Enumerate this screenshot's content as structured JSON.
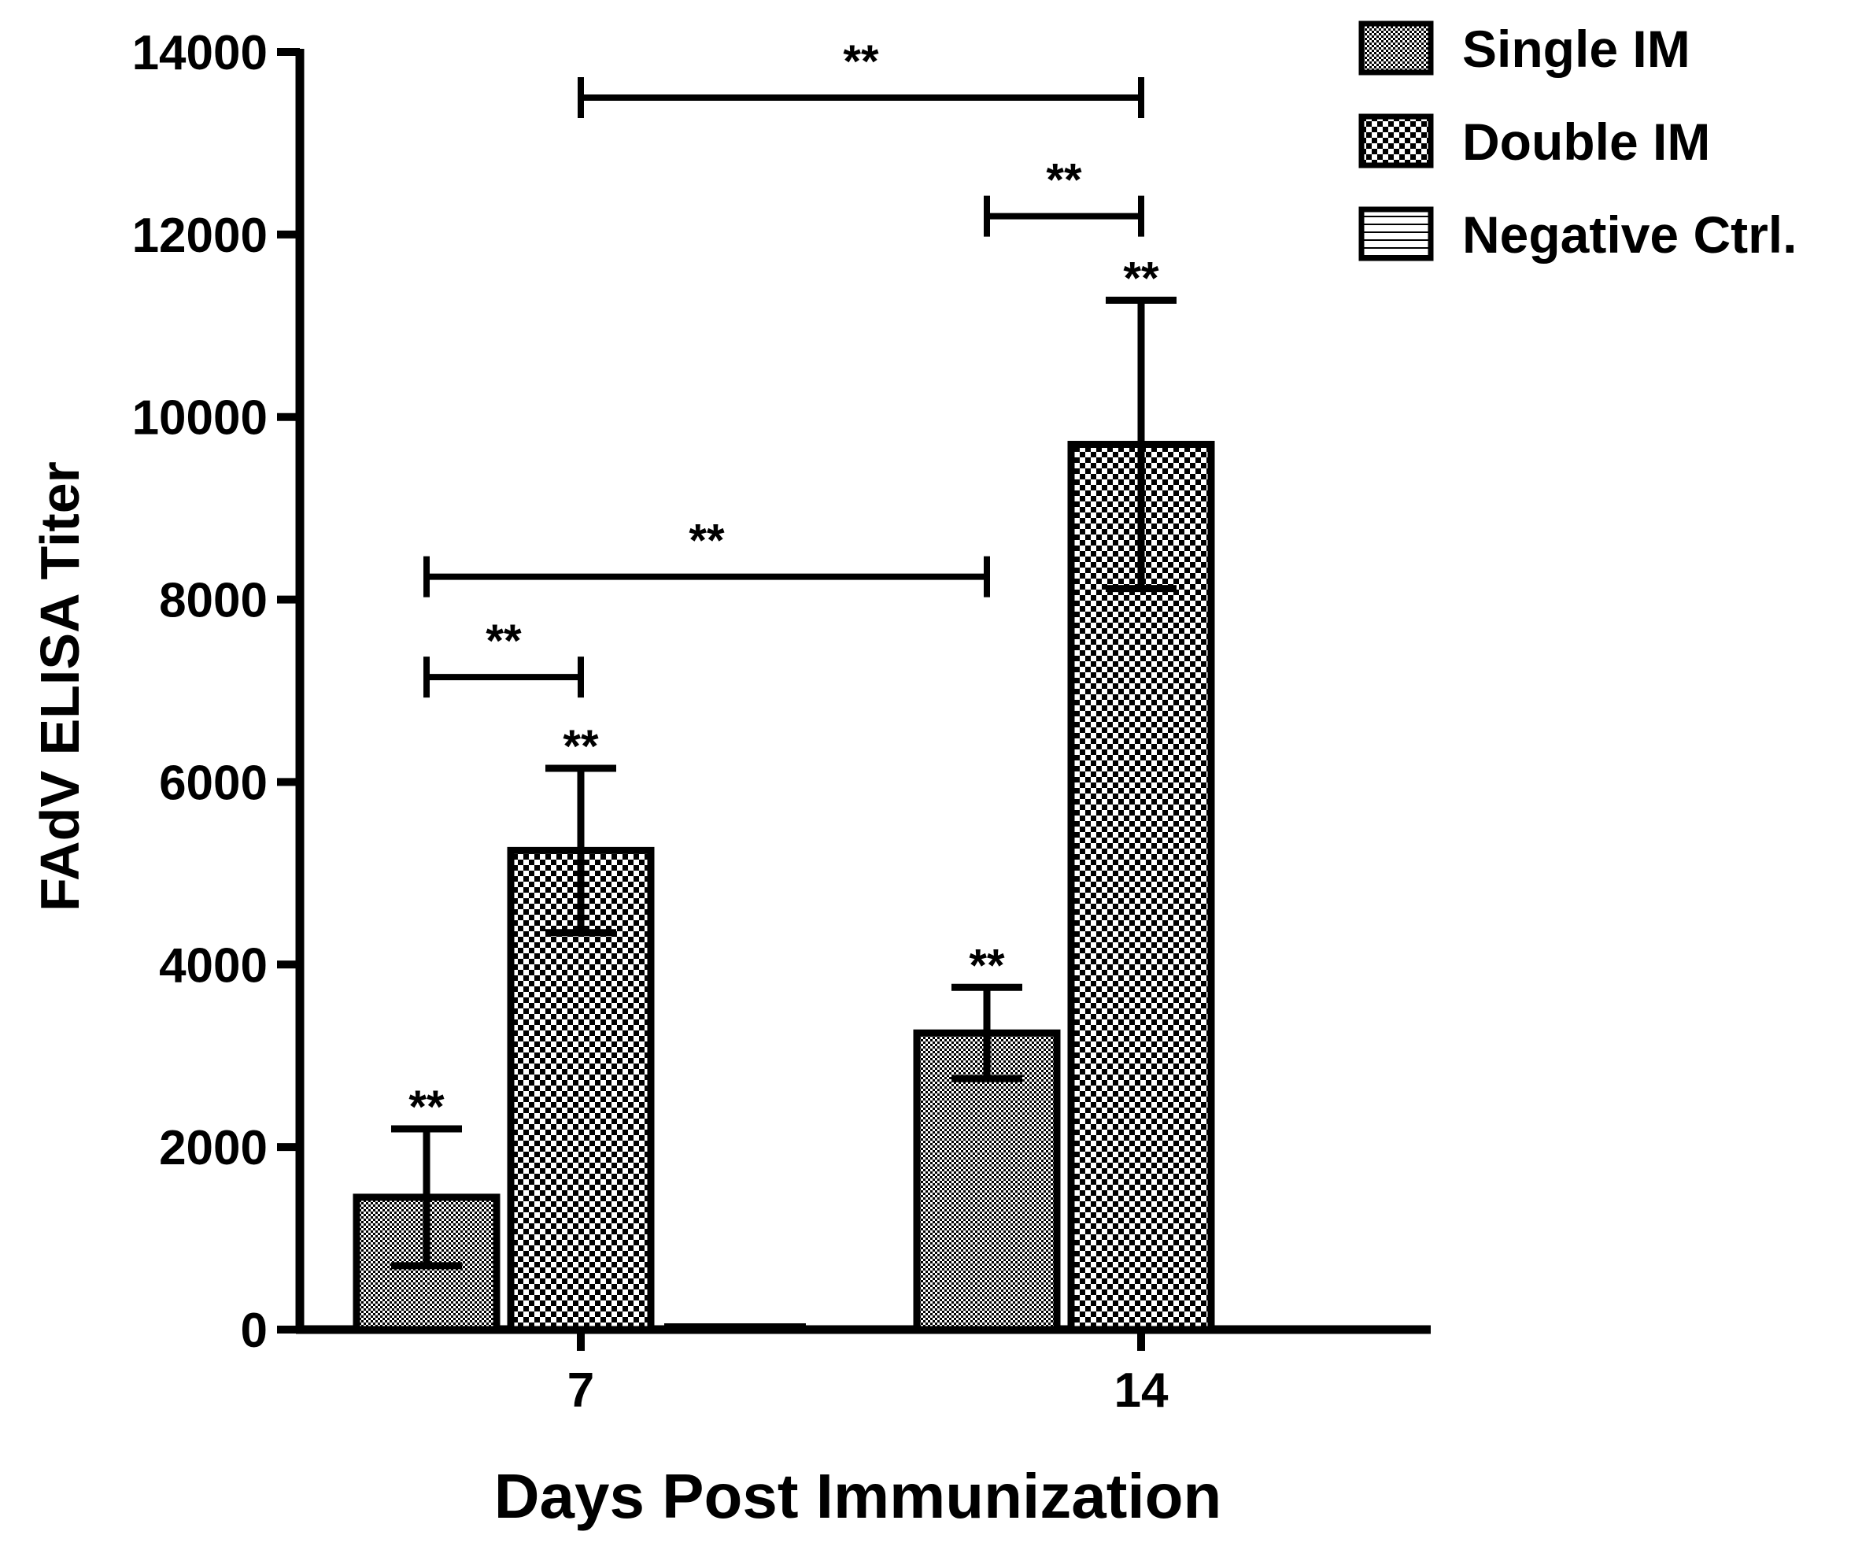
{
  "chart_data": {
    "type": "bar",
    "xlabel": "Days Post Immunization",
    "ylabel": "FAdV ELISA Titer",
    "ylim": [
      0,
      14000
    ],
    "yticks": [
      0,
      2000,
      4000,
      6000,
      8000,
      10000,
      12000,
      14000
    ],
    "ytick_labels": [
      "0",
      "2000",
      "4000",
      "6000",
      "8000",
      "10000",
      "12000",
      "14000"
    ],
    "categories": [
      "7",
      "14"
    ],
    "legend_position": "top-right",
    "series": [
      {
        "name": "Single IM",
        "values": [
          1450,
          3250
        ],
        "errors": [
          750,
          500
        ],
        "pattern": "fine-check",
        "sig": [
          "**",
          "**"
        ]
      },
      {
        "name": "Double IM",
        "values": [
          5250,
          9700
        ],
        "errors": [
          900,
          1580
        ],
        "pattern": "coarse-check",
        "sig": [
          "**",
          "**"
        ]
      },
      {
        "name": "Negative Ctrl.",
        "values": [
          60,
          20
        ],
        "errors": [
          0,
          0
        ],
        "pattern": "horizontal-lines",
        "sig": [
          "",
          ""
        ]
      }
    ],
    "significance_brackets": [
      {
        "from": "Single IM, day 7",
        "to": "Double IM, day 7",
        "label": "**",
        "y": 7150
      },
      {
        "from": "Single IM, day 7",
        "to": "Single IM, day 14",
        "label": "**",
        "y": 8250
      },
      {
        "from": "Single IM, day 14",
        "to": "Double IM, day 14",
        "label": "**",
        "y": 12200
      },
      {
        "from": "Double IM, day 7",
        "to": "Double IM, day 14",
        "label": "**",
        "y": 13500
      }
    ],
    "bar_color": "#000000",
    "background": "#ffffff",
    "grid": false
  }
}
